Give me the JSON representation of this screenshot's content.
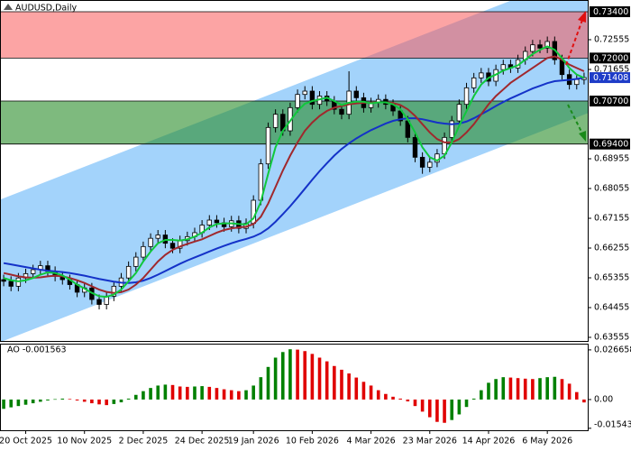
{
  "chart_data": [
    {
      "type": "candlestick",
      "title": "AUDUSD,Daily",
      "categories": [
        null,
        null,
        null,
        "20 Oct 2025",
        null,
        null,
        null,
        null,
        null,
        null,
        null,
        "10 Nov 2025",
        null,
        null,
        null,
        null,
        null,
        null,
        null,
        "2 Dec 2025",
        null,
        null,
        null,
        null,
        null,
        null,
        null,
        "24 Dec 2025",
        null,
        null,
        null,
        null,
        null,
        null,
        "19 Jan 2026",
        null,
        null,
        null,
        null,
        null,
        null,
        null,
        "10 Feb 2026",
        null,
        null,
        null,
        null,
        null,
        null,
        null,
        "4 Mar 2026",
        null,
        null,
        null,
        null,
        null,
        null,
        null,
        "23 Mar 2026",
        null,
        null,
        null,
        null,
        null,
        null,
        null,
        "14 Apr 2026",
        null,
        null,
        null,
        null,
        null,
        null,
        null,
        "6 May 2026",
        null,
        null,
        null,
        null,
        null
      ],
      "open": [
        0.653,
        0.6525,
        0.651,
        0.6535,
        0.6548,
        0.656,
        0.6572,
        0.6555,
        0.654,
        0.653,
        0.6515,
        0.6492,
        0.6505,
        0.647,
        0.6455,
        0.648,
        0.651,
        0.6535,
        0.657,
        0.6598,
        0.663,
        0.6655,
        0.6665,
        0.664,
        0.6625,
        0.6648,
        0.666,
        0.6672,
        0.6695,
        0.671,
        0.6702,
        0.669,
        0.6708,
        0.6685,
        0.67,
        0.677,
        0.688,
        0.699,
        0.703,
        0.698,
        0.705,
        0.709,
        0.71,
        0.706,
        0.7085,
        0.707,
        0.7045,
        0.703,
        0.71,
        0.708,
        0.705,
        0.7065,
        0.7075,
        0.706,
        0.704,
        0.701,
        0.696,
        0.69,
        0.687,
        0.6885,
        0.691,
        0.696,
        0.701,
        0.706,
        0.711,
        0.714,
        0.7155,
        0.713,
        0.7165,
        0.718,
        0.717,
        0.7195,
        0.722,
        0.724,
        0.723,
        0.725,
        0.7195,
        0.715,
        0.712,
        0.7135
      ],
      "high": [
        0.6545,
        0.654,
        0.655,
        0.6563,
        0.6575,
        0.6587,
        0.6587,
        0.657,
        0.6555,
        0.6545,
        0.653,
        0.652,
        0.652,
        0.6485,
        0.6495,
        0.6525,
        0.655,
        0.6585,
        0.6613,
        0.6645,
        0.667,
        0.668,
        0.668,
        0.6655,
        0.6663,
        0.6675,
        0.6687,
        0.671,
        0.6725,
        0.6725,
        0.6717,
        0.6723,
        0.6723,
        0.6715,
        0.6785,
        0.6895,
        0.7005,
        0.7045,
        0.7045,
        0.7065,
        0.7105,
        0.7115,
        0.7115,
        0.71,
        0.71,
        0.7085,
        0.706,
        0.716,
        0.7115,
        0.7095,
        0.708,
        0.709,
        0.709,
        0.7075,
        0.7055,
        0.7025,
        0.6975,
        0.6915,
        0.69,
        0.6925,
        0.6975,
        0.7025,
        0.7075,
        0.7125,
        0.7155,
        0.717,
        0.717,
        0.718,
        0.7195,
        0.7195,
        0.721,
        0.7235,
        0.7255,
        0.7255,
        0.7265,
        0.7265,
        0.721,
        0.7165,
        0.715,
        0.7156
      ],
      "low": [
        0.651,
        0.6495,
        0.6495,
        0.652,
        0.6533,
        0.6545,
        0.654,
        0.6525,
        0.6515,
        0.65,
        0.6477,
        0.6477,
        0.6455,
        0.644,
        0.644,
        0.6465,
        0.6495,
        0.652,
        0.6555,
        0.6583,
        0.6615,
        0.664,
        0.6625,
        0.661,
        0.661,
        0.6633,
        0.6645,
        0.6657,
        0.668,
        0.6687,
        0.6675,
        0.6675,
        0.667,
        0.667,
        0.6685,
        0.6755,
        0.6865,
        0.6975,
        0.6965,
        0.6965,
        0.7035,
        0.7075,
        0.7045,
        0.7045,
        0.7055,
        0.703,
        0.7015,
        0.7015,
        0.7065,
        0.7035,
        0.7035,
        0.705,
        0.7045,
        0.7025,
        0.6995,
        0.6945,
        0.6885,
        0.685,
        0.6855,
        0.687,
        0.6895,
        0.6945,
        0.6995,
        0.7045,
        0.7095,
        0.7125,
        0.7115,
        0.7115,
        0.715,
        0.7155,
        0.7155,
        0.718,
        0.7205,
        0.7215,
        0.7215,
        0.718,
        0.7135,
        0.7105,
        0.7105,
        0.712
      ],
      "close": [
        0.6525,
        0.651,
        0.6535,
        0.6548,
        0.656,
        0.6572,
        0.6555,
        0.654,
        0.653,
        0.6515,
        0.6492,
        0.6505,
        0.647,
        0.6455,
        0.648,
        0.651,
        0.6535,
        0.657,
        0.6598,
        0.663,
        0.6655,
        0.6665,
        0.664,
        0.6625,
        0.6648,
        0.666,
        0.6672,
        0.6695,
        0.671,
        0.6702,
        0.669,
        0.6708,
        0.6685,
        0.67,
        0.677,
        0.688,
        0.699,
        0.703,
        0.698,
        0.705,
        0.709,
        0.71,
        0.706,
        0.7085,
        0.707,
        0.7045,
        0.703,
        0.71,
        0.708,
        0.705,
        0.7065,
        0.7075,
        0.706,
        0.704,
        0.701,
        0.696,
        0.69,
        0.687,
        0.6885,
        0.691,
        0.696,
        0.701,
        0.706,
        0.711,
        0.714,
        0.7155,
        0.713,
        0.7165,
        0.718,
        0.717,
        0.7195,
        0.722,
        0.724,
        0.723,
        0.725,
        0.7195,
        0.715,
        0.712,
        0.7135,
        0.7141
      ],
      "series": [
        {
          "color": "#1432c8",
          "values": [
            0.658,
            0.6576,
            0.6572,
            0.6568,
            0.6564,
            0.656,
            0.6557,
            0.6555,
            0.6553,
            0.655,
            0.6546,
            0.6542,
            0.6537,
            0.6532,
            0.6528,
            0.6524,
            0.6521,
            0.652,
            0.6522,
            0.6527,
            0.6535,
            0.6545,
            0.6556,
            0.6567,
            0.6578,
            0.6588,
            0.6597,
            0.6606,
            0.6615,
            0.6624,
            0.6632,
            0.664,
            0.6647,
            0.6653,
            0.666,
            0.667,
            0.6685,
            0.6705,
            0.6728,
            0.6752,
            0.6778,
            0.6805,
            0.6832,
            0.6858,
            0.6882,
            0.6905,
            0.6925,
            0.6942,
            0.6957,
            0.697,
            0.6982,
            0.6992,
            0.7002,
            0.701,
            0.7015,
            0.7018,
            0.7018,
            0.7015,
            0.701,
            0.7005,
            0.7002,
            0.7,
            0.7002,
            0.7008,
            0.7018,
            0.703,
            0.7042,
            0.7055,
            0.7067,
            0.7078,
            0.7088,
            0.7098,
            0.7108,
            0.7116,
            0.7124,
            0.713,
            0.7132,
            0.7134,
            0.7137,
            0.7141
          ]
        },
        {
          "color": "#a0282d",
          "values": [
            0.655,
            0.6545,
            0.654,
            0.6537,
            0.6536,
            0.6537,
            0.654,
            0.6542,
            0.654,
            0.6535,
            0.6528,
            0.652,
            0.651,
            0.65,
            0.6493,
            0.649,
            0.6492,
            0.65,
            0.6515,
            0.6535,
            0.656,
            0.6585,
            0.6605,
            0.662,
            0.663,
            0.6638,
            0.6645,
            0.6652,
            0.6662,
            0.6672,
            0.668,
            0.6685,
            0.6688,
            0.669,
            0.6698,
            0.672,
            0.676,
            0.681,
            0.686,
            0.6905,
            0.6945,
            0.698,
            0.7005,
            0.7025,
            0.704,
            0.705,
            0.7055,
            0.706,
            0.7063,
            0.7065,
            0.7065,
            0.7066,
            0.7066,
            0.7064,
            0.7058,
            0.7045,
            0.7025,
            0.7,
            0.6975,
            0.6955,
            0.6945,
            0.6945,
            0.6955,
            0.6975,
            0.7,
            0.703,
            0.706,
            0.7085,
            0.7105,
            0.7125,
            0.714,
            0.7155,
            0.717,
            0.7185,
            0.72,
            0.7205,
            0.7195,
            0.718,
            0.717,
            0.716
          ]
        },
        {
          "color": "#10c83c",
          "values": [
            0.6535,
            0.6528,
            0.6525,
            0.6528,
            0.6535,
            0.6545,
            0.6552,
            0.655,
            0.6543,
            0.653,
            0.6515,
            0.6503,
            0.649,
            0.648,
            0.6478,
            0.6485,
            0.65,
            0.6525,
            0.655,
            0.6585,
            0.6615,
            0.664,
            0.665,
            0.665,
            0.6648,
            0.6652,
            0.666,
            0.6672,
            0.6688,
            0.6698,
            0.67,
            0.67,
            0.6698,
            0.6697,
            0.6715,
            0.6765,
            0.685,
            0.693,
            0.698,
            0.701,
            0.704,
            0.7062,
            0.707,
            0.7075,
            0.708,
            0.707,
            0.7058,
            0.7065,
            0.7068,
            0.7068,
            0.7063,
            0.7066,
            0.7066,
            0.706,
            0.7045,
            0.7015,
            0.6975,
            0.693,
            0.69,
            0.689,
            0.6905,
            0.6945,
            0.6995,
            0.704,
            0.7085,
            0.712,
            0.714,
            0.715,
            0.7162,
            0.717,
            0.7178,
            0.7195,
            0.7212,
            0.7225,
            0.7235,
            0.7225,
            0.72,
            0.717,
            0.715,
            0.714
          ]
        }
      ],
      "candle_color": "#000000",
      "channel": {
        "color": "#a3d3fb",
        "upper": [
          0.6776,
          0.746
        ],
        "lower": [
          0.6345,
          0.7029
        ]
      },
      "zones": [
        {
          "from": 0.72,
          "to": 0.734,
          "color": "rgba(250,90,90,0.55)"
        },
        {
          "from": 0.694,
          "to": 0.707,
          "color": "rgba(40,140,40,0.6)"
        }
      ],
      "levels": [
        {
          "value": 0.734,
          "label": "0.73400",
          "color": "#000000",
          "line": true
        },
        {
          "value": 0.72,
          "label": "0.72000",
          "color": "#000000",
          "line": true
        },
        {
          "value": 0.71408,
          "color": "#1e3cc8",
          "line": false
        },
        {
          "value": 0.707,
          "label": "0.70700",
          "color": "#000000",
          "line": true
        },
        {
          "value": 0.694,
          "label": "0.69400",
          "color": "#000000",
          "line": true
        }
      ],
      "ylim": [
        0.63446,
        0.73755
      ],
      "yticks": [
        0.63555,
        0.64455,
        0.65355,
        0.66255,
        0.67155,
        0.68055,
        0.68955,
        0.71655,
        0.72555
      ],
      "grid": false
    },
    {
      "type": "histogram",
      "title": "AO -0.001563",
      "values": [
        -0.005,
        -0.0042,
        -0.0035,
        -0.0028,
        -0.002,
        -0.0012,
        -0.0005,
        0.0002,
        0.0005,
        0.0003,
        -0.0005,
        -0.0012,
        -0.002,
        -0.0026,
        -0.003,
        -0.0024,
        -0.0015,
        0.0005,
        0.0025,
        0.0045,
        0.0062,
        0.0075,
        0.008,
        0.0078,
        0.007,
        0.0068,
        0.007,
        0.0072,
        0.0068,
        0.0062,
        0.0055,
        0.005,
        0.0045,
        0.005,
        0.0075,
        0.012,
        0.0175,
        0.0225,
        0.0255,
        0.027,
        0.0268,
        0.026,
        0.0245,
        0.0225,
        0.0205,
        0.018,
        0.016,
        0.014,
        0.0118,
        0.0095,
        0.0075,
        0.005,
        0.003,
        0.0015,
        0.0005,
        -0.001,
        -0.0035,
        -0.0065,
        -0.0095,
        -0.012,
        -0.0125,
        -0.011,
        -0.008,
        -0.004,
        0.0005,
        0.005,
        0.009,
        0.011,
        0.012,
        0.0118,
        0.0115,
        0.0112,
        0.011,
        0.0115,
        0.012,
        0.0122,
        0.011,
        0.0085,
        0.004,
        -0.001563
      ],
      "up_color": "#008000",
      "down_color": "#e00000",
      "ylim": [
        -0.0165,
        0.03
      ],
      "yticks": [
        0.026658,
        {
          "value": 0,
          "label": "0.00"
        },
        -0.015439
      ],
      "grid": false
    }
  ]
}
